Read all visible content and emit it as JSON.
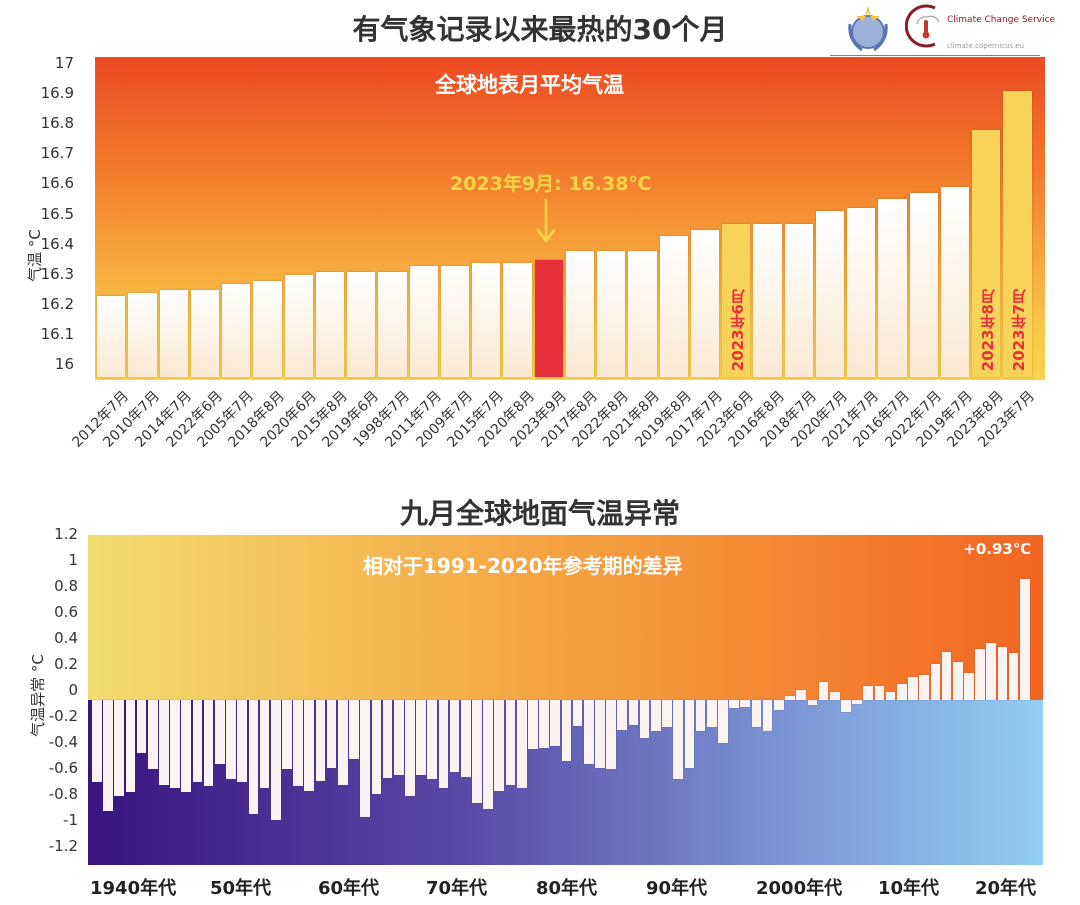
{
  "header": {
    "logos": [
      "WMO",
      "Climate Change Service",
      "climate.copernicus.eu"
    ]
  },
  "chart_data": [
    {
      "type": "bar",
      "title": "有气象记录以来最热的30个月",
      "subtitle": "全球地表月平均气温",
      "ylabel": "气温 °C",
      "ylim": [
        16,
        17
      ],
      "yticks": [
        "16",
        "16.1",
        "16.2",
        "16.3",
        "16.4",
        "16.5",
        "16.6",
        "16.7",
        "16.8",
        "16.9",
        "17"
      ],
      "annotation": "2023年9月: 16.38℃",
      "highlight": {
        "current": "2023年9月",
        "year2023": [
          "2023年6月",
          "2023年8月",
          "2023年7月"
        ]
      },
      "categories": [
        "2012年7月",
        "2010年7月",
        "2014年7月",
        "2022年6月",
        "2005年7月",
        "2018年8月",
        "2020年6月",
        "2015年8月",
        "2019年6月",
        "1998年7月",
        "2011年7月",
        "2009年7月",
        "2015年7月",
        "2020年8月",
        "2023年9月",
        "2017年8月",
        "2022年8月",
        "2021年8月",
        "2019年8月",
        "2017年7月",
        "2023年6月",
        "2016年8月",
        "2018年7月",
        "2020年7月",
        "2021年7月",
        "2016年7月",
        "2022年7月",
        "2019年7月",
        "2023年8月",
        "2023年7月"
      ],
      "values": [
        16.26,
        16.27,
        16.28,
        16.28,
        16.3,
        16.31,
        16.33,
        16.34,
        16.34,
        16.34,
        16.36,
        16.36,
        16.37,
        16.37,
        16.38,
        16.41,
        16.41,
        16.41,
        16.46,
        16.48,
        16.5,
        16.5,
        16.5,
        16.54,
        16.55,
        16.58,
        16.6,
        16.62,
        16.81,
        16.94
      ],
      "colors": {
        "bar": "#fdf3e6",
        "current": "#e8303a",
        "year2023": "#f7d35a",
        "annotation": "#f7d548"
      }
    },
    {
      "type": "bar",
      "title": "九月全球地面气温异常",
      "subtitle": "相对于1991-2020年参考期的差异",
      "ylabel": "气温异常 °C",
      "ylim": [
        -1.3,
        1.25
      ],
      "yticks": [
        "1.2",
        "1",
        "0.8",
        "0.6",
        "0.4",
        "0.2",
        "0",
        "-0.2",
        "-0.4",
        "-0.6",
        "-0.8",
        "-1",
        "-1.2"
      ],
      "annotation": "+0.93℃",
      "xdecades": [
        "1940年代",
        "50年代",
        "60年代",
        "70年代",
        "80年代",
        "90年代",
        "2000年代",
        "10年代",
        "20年代"
      ],
      "x_start": 1940,
      "x_end": 2023,
      "values": [
        -0.63,
        -0.85,
        -0.74,
        -0.71,
        -0.41,
        -0.53,
        -0.65,
        -0.68,
        -0.71,
        -0.63,
        -0.66,
        -0.49,
        -0.61,
        -0.63,
        -0.88,
        -0.68,
        -0.92,
        -0.53,
        -0.66,
        -0.7,
        -0.62,
        -0.52,
        -0.65,
        -0.45,
        -0.9,
        -0.72,
        -0.6,
        -0.58,
        -0.74,
        -0.58,
        -0.61,
        -0.68,
        -0.55,
        -0.59,
        -0.79,
        -0.84,
        -0.7,
        -0.65,
        -0.68,
        -0.38,
        -0.37,
        -0.35,
        -0.47,
        -0.2,
        -0.49,
        -0.52,
        -0.53,
        -0.23,
        -0.19,
        -0.29,
        -0.24,
        -0.21,
        -0.61,
        -0.52,
        -0.24,
        -0.21,
        -0.33,
        -0.06,
        -0.05,
        -0.21,
        -0.24,
        -0.08,
        0.03,
        0.08,
        -0.04,
        0.14,
        0.06,
        -0.09,
        -0.03,
        0.11,
        0.11,
        0.06,
        0.12,
        0.18,
        0.19,
        0.28,
        0.37,
        0.29,
        0.21,
        0.39,
        0.44,
        0.41,
        0.36,
        0.93
      ],
      "colors": {
        "bar": "#fbf3f2",
        "warm_bg": "#f26522",
        "cool_bg": "#3a1480"
      }
    }
  ]
}
